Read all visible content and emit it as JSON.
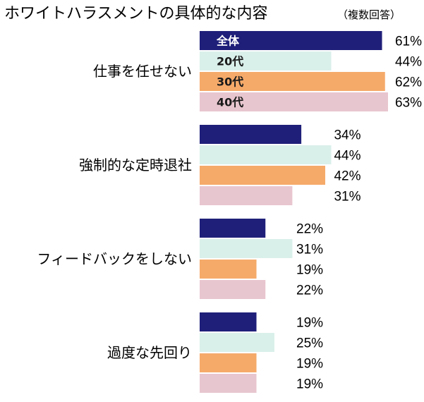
{
  "chart_data": {
    "type": "bar",
    "orientation": "horizontal",
    "title": "ホワイトハラスメントの具体的な内容",
    "subtitle": "（複数回答）",
    "unit": "%",
    "categories": [
      "仕事を任せない",
      "強制的な定時退社",
      "フィードバックをしない",
      "過度な先回り"
    ],
    "series": [
      {
        "name": "全体",
        "color": "#1f1f7a",
        "label_color": "#ffffff",
        "values": [
          61,
          34,
          22,
          19
        ]
      },
      {
        "name": "20代",
        "color": "#d9efea",
        "label_color": "#1a1a1a",
        "values": [
          44,
          44,
          31,
          25
        ]
      },
      {
        "name": "30代",
        "color": "#f5aa6a",
        "label_color": "#1a1a1a",
        "values": [
          62,
          42,
          19,
          19
        ]
      },
      {
        "name": "40代",
        "color": "#e8c6cf",
        "label_color": "#1a1a1a",
        "values": [
          63,
          31,
          22,
          19
        ]
      }
    ],
    "legend": "inside bars of first group",
    "grid": false,
    "xlim": [
      0,
      63
    ]
  }
}
